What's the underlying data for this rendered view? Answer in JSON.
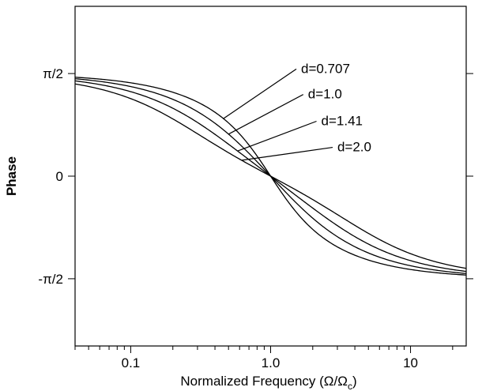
{
  "chart_data": {
    "type": "line",
    "title": "",
    "xlabel_main": "Normalized Frequency (Ω/Ω",
    "xlabel_sub": "c",
    "xlabel_close": ")",
    "ylabel": "Phase",
    "xscale": "log",
    "xlim": [
      0.04,
      25
    ],
    "ylim": [
      -2.6,
      2.6
    ],
    "x_ticks": [
      {
        "value": 0.1,
        "label": "0.1"
      },
      {
        "value": 1.0,
        "label": "1.0"
      },
      {
        "value": 10,
        "label": "10"
      }
    ],
    "y_ticks": [
      {
        "value": 1.5708,
        "label": "π/2"
      },
      {
        "value": 0,
        "label": "0"
      },
      {
        "value": -1.5708,
        "label": "-π/2"
      }
    ],
    "grid": false,
    "series": [
      {
        "name": "d=0.707",
        "d": 0.707,
        "label_at": {
          "x": 1.65,
          "y": 1.58
        },
        "leader_from_x": 0.46
      },
      {
        "name": "d=1.0",
        "d": 1.0,
        "label_at": {
          "x": 1.85,
          "y": 1.19
        },
        "leader_from_x": 0.5
      },
      {
        "name": "d=1.41",
        "d": 1.41,
        "label_at": {
          "x": 2.3,
          "y": 0.78
        },
        "leader_from_x": 0.58
      },
      {
        "name": "d=2.0",
        "d": 2.0,
        "label_at": {
          "x": 3.0,
          "y": 0.38
        },
        "leader_from_x": 0.62
      }
    ]
  }
}
